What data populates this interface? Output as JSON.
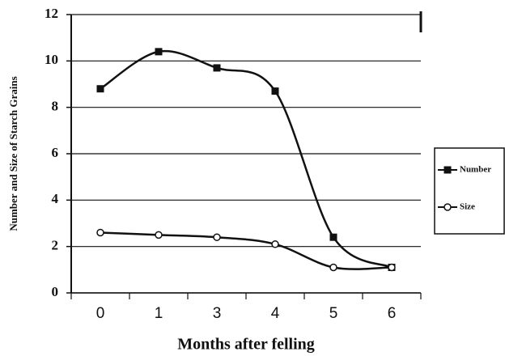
{
  "chart_data": {
    "type": "line",
    "x_label": "Months after felling",
    "y_label": "Number and Size of Starch Grains",
    "categories": [
      "0",
      "1",
      "3",
      "4",
      "5",
      "6"
    ],
    "series": [
      {
        "name": "Number",
        "color": "#111111",
        "marker": "square",
        "values": [
          8.8,
          10.4,
          9.7,
          8.7,
          2.4,
          1.1
        ]
      },
      {
        "name": "Size",
        "color": "#111111",
        "marker": "circle",
        "values": [
          2.6,
          2.5,
          2.4,
          2.1,
          1.1,
          1.1
        ]
      }
    ],
    "ylim": [
      0,
      12
    ],
    "yticks": [
      0,
      2,
      4,
      6,
      8,
      10,
      12
    ],
    "grid": true,
    "legend": "right"
  }
}
